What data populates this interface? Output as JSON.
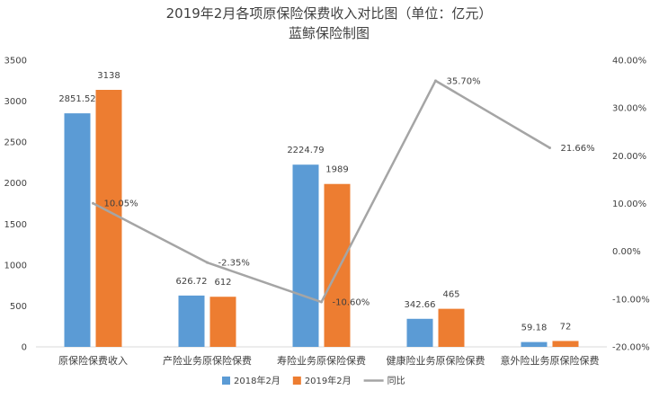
{
  "chart_data": {
    "type": "bar",
    "title": "2019年2月各项原保险保费收入对比图（单位：亿元）",
    "subtitle": "蓝鲸保险制图",
    "categories": [
      "原保险保费收入",
      "产险业务原保险保费",
      "寿险业务原保险保费",
      "健康险业务原保险保费",
      "意外险业务原保险保费"
    ],
    "series": [
      {
        "name": "2018年2月",
        "type": "bar",
        "axis": "left",
        "color": "#5B9BD5",
        "values": [
          2851.52,
          626.72,
          2224.79,
          342.66,
          59.18
        ],
        "labels": [
          "2851.52",
          "626.72",
          "2224.79",
          "342.66",
          "59.18"
        ]
      },
      {
        "name": "2019年2月",
        "type": "bar",
        "axis": "left",
        "color": "#ED7D31",
        "values": [
          3138,
          612,
          1989,
          465,
          72
        ],
        "labels": [
          "3138",
          "612",
          "1989",
          "465",
          "72"
        ]
      },
      {
        "name": "同比",
        "type": "line",
        "axis": "right",
        "color": "#A5A5A5",
        "values": [
          10.05,
          -2.35,
          -10.6,
          35.7,
          21.66
        ],
        "labels": [
          "10.05%",
          "-2.35%",
          "-10.60%",
          "35.70%",
          "21.66%"
        ]
      }
    ],
    "y_left": {
      "min": 0,
      "max": 3500,
      "ticks": [
        "0",
        "500",
        "1000",
        "1500",
        "2000",
        "2500",
        "3000",
        "3500"
      ]
    },
    "y_right": {
      "min": -20,
      "max": 40,
      "ticks": [
        "-20.00%",
        "-10.00%",
        "0.00%",
        "10.00%",
        "20.00%",
        "30.00%",
        "40.00%"
      ]
    },
    "legend_position": "bottom",
    "grid": false
  }
}
